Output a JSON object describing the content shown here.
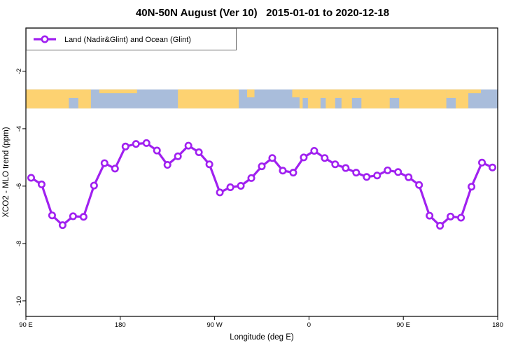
{
  "title": "40N-50N August (Ver 10)   2015-01-01 to 2020-12-18",
  "legend": {
    "label": "Land (Nadir&Glint) and Ocean (Glint)"
  },
  "colors": {
    "line": "#A020F0",
    "marker_fill": "#ffffff",
    "land": "#FDD271",
    "ocean": "#A9BDDB",
    "axis": "#000000"
  },
  "chart_data": {
    "type": "line",
    "title": "40N-50N August (Ver 10)   2015-01-01 to 2020-12-18",
    "xlabel": "Longitude (deg E)",
    "ylabel": "XCO2 - MLO trend (ppm)",
    "xlim": [
      90,
      540
    ],
    "ylim": [
      -10.54,
      -0.49
    ],
    "grid": false,
    "legend_position": "top-left",
    "x_ticks": [
      {
        "deg": 90,
        "label": "90 E"
      },
      {
        "deg": 180,
        "label": "180"
      },
      {
        "deg": 270,
        "label": "90 W"
      },
      {
        "deg": 360,
        "label": "0"
      },
      {
        "deg": 450,
        "label": "90 E"
      },
      {
        "deg": 540,
        "label": "180"
      }
    ],
    "y_ticks": [
      {
        "val": -2,
        "label": "-2"
      },
      {
        "val": -4,
        "label": "-4"
      },
      {
        "val": -6,
        "label": "-6"
      },
      {
        "val": -8,
        "label": "-8"
      },
      {
        "val": -10,
        "label": "-10"
      }
    ],
    "series": [
      {
        "name": "Land (Nadir&Glint) and Ocean (Glint)",
        "x": [
          95,
          105,
          115,
          125,
          135,
          145,
          155,
          165,
          175,
          185,
          195,
          205,
          215,
          225,
          235,
          245,
          255,
          265,
          275,
          285,
          295,
          305,
          315,
          325,
          335,
          345,
          355,
          365,
          375,
          385,
          395,
          405,
          415,
          425,
          435,
          445,
          455,
          465,
          475,
          485,
          495,
          505,
          515,
          525,
          535
        ],
        "values": [
          -5.71,
          -5.94,
          -7.02,
          -7.36,
          -7.05,
          -7.07,
          -5.98,
          -5.2,
          -5.39,
          -4.62,
          -4.53,
          -4.5,
          -4.76,
          -5.26,
          -4.96,
          -4.59,
          -4.82,
          -5.24,
          -6.22,
          -6.04,
          -5.99,
          -5.72,
          -5.31,
          -5.02,
          -5.46,
          -5.53,
          -5.0,
          -4.77,
          -5.02,
          -5.24,
          -5.37,
          -5.53,
          -5.68,
          -5.63,
          -5.45,
          -5.51,
          -5.69,
          -5.96,
          -7.03,
          -7.38,
          -7.06,
          -7.1,
          -6.02,
          -5.18,
          -5.35
        ]
      }
    ],
    "map_band": {
      "top_val": -2.63,
      "bottom_val": -3.29,
      "land_segments": [
        {
          "from": 90,
          "to": 152,
          "part": "full"
        },
        {
          "from": 160,
          "to": 196,
          "part": "thin-top"
        },
        {
          "from": 235,
          "to": 293,
          "part": "full"
        },
        {
          "from": 301,
          "to": 308,
          "part": "top"
        },
        {
          "from": 344,
          "to": 351,
          "part": "top"
        },
        {
          "from": 351,
          "to": 491,
          "part": "full"
        },
        {
          "from": 491,
          "to": 512,
          "part": "full"
        },
        {
          "from": 512,
          "to": 524,
          "part": "thin-top"
        }
      ],
      "sea_notches": [
        {
          "from": 131,
          "to": 140
        },
        {
          "from": 354,
          "to": 359
        },
        {
          "from": 371,
          "to": 376
        },
        {
          "from": 385,
          "to": 391
        },
        {
          "from": 401,
          "to": 410
        },
        {
          "from": 437,
          "to": 446
        },
        {
          "from": 491,
          "to": 500
        }
      ]
    }
  }
}
